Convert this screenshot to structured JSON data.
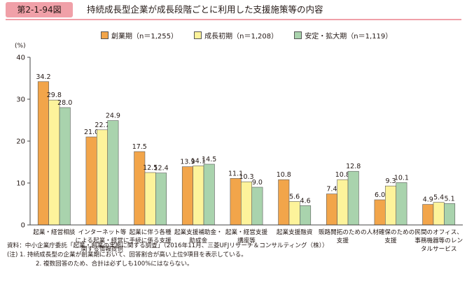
{
  "figure": {
    "number": "第2-1-94図",
    "title": "持続成長型企業が成長段階ごとに利用した支援施策等の内容"
  },
  "chart_data": {
    "type": "bar",
    "title": "持続成長型企業が成長段階ごとに利用した支援施策等の内容",
    "ylabel": "(%)",
    "ylim": [
      0,
      40
    ],
    "yticks": [
      0,
      10,
      20,
      30,
      40
    ],
    "grid": false,
    "legend_position": "top",
    "categories": [
      [
        "起業・経営相談"
      ],
      [
        "インターネット等",
        "による起業・経営に",
        "関する情報提供"
      ],
      [
        "起業に伴う各種",
        "手続に係る支援"
      ],
      [
        "起業支援補助金・",
        "助成金"
      ],
      [
        "起業・経営支援",
        "講座等"
      ],
      [
        "起業支援融資"
      ],
      [
        "販路開拓のための",
        "支援"
      ],
      [
        "人材確保のための",
        "支援"
      ],
      [
        "民間のオフィス、",
        "事務機器等のレン",
        "タルサービス"
      ]
    ],
    "series": [
      {
        "name": "創業期",
        "n_label": "（n＝1,255）",
        "color": "#f2a54a",
        "values": [
          34.2,
          21.0,
          17.5,
          13.9,
          11.1,
          10.8,
          7.4,
          6.0,
          4.9
        ],
        "labels": [
          "34.2",
          "21.0",
          "17.5",
          "13.9",
          "11.1",
          "10.8",
          "7.4",
          "6.0",
          "4.9"
        ]
      },
      {
        "name": "成長初期",
        "n_label": "（n＝1,208）",
        "color": "#fdf39b",
        "values": [
          29.8,
          22.7,
          12.5,
          14.1,
          10.3,
          5.6,
          10.8,
          9.3,
          5.4
        ],
        "labels": [
          "29.8",
          "22.7",
          "12.5",
          "14.1",
          "10.3",
          "5.6",
          "10.8",
          "9.3",
          "5.4"
        ]
      },
      {
        "name": "安定・拡大期",
        "n_label": "（n＝1,119）",
        "color": "#a9d3ad",
        "values": [
          28.0,
          24.9,
          12.4,
          14.5,
          9.0,
          4.6,
          12.8,
          10.1,
          5.1
        ],
        "labels": [
          "28.0",
          "24.9",
          "12.4",
          "14.5",
          "9.0",
          "4.6",
          "12.8",
          "10.1",
          "5.1"
        ]
      }
    ]
  },
  "notes": {
    "source": "資料：中小企業庁委託「起業・創業の実態に関する調査」（2016年11月、三菱UFJリサーチ＆コンサルティング（株））",
    "note1": "(注) 1. 持続成長型の企業が創業期において、回答割合が高い上位9項目を表示している。",
    "note2": "2. 複数回答のため、合計は必ずしも100%にはならない。"
  }
}
